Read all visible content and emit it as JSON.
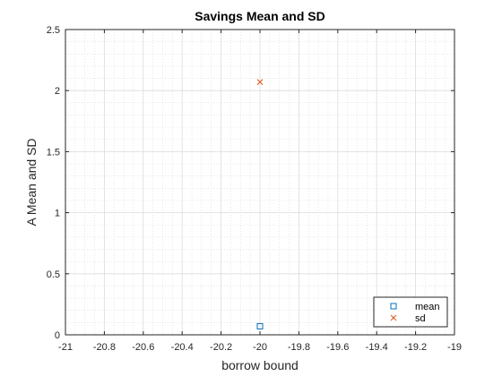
{
  "chart_data": {
    "type": "scatter",
    "title": "Savings Mean and SD",
    "xlabel": "borrow bound",
    "ylabel": "A Mean and SD",
    "xlim": [
      -21,
      -19
    ],
    "ylim": [
      0,
      2.5
    ],
    "xticks": [
      -21,
      -20.8,
      -20.6,
      -20.4,
      -20.2,
      -20,
      -19.8,
      -19.6,
      -19.4,
      -19.2,
      -19
    ],
    "xtick_labels": [
      "-21",
      "-20.8",
      "-20.6",
      "-20.4",
      "-20.2",
      "-20",
      "-19.8",
      "-19.6",
      "-19.4",
      "-19.2",
      "-19"
    ],
    "yticks": [
      0,
      0.5,
      1,
      1.5,
      2,
      2.5
    ],
    "ytick_labels": [
      "0",
      "0.5",
      "1",
      "1.5",
      "2",
      "2.5"
    ],
    "grid": true,
    "minor_grid": true,
    "legend_location": "bottom-right",
    "series": [
      {
        "name": "mean",
        "marker": "square",
        "color": "#0072BD",
        "points": [
          {
            "x": -20,
            "y": 0.07
          }
        ]
      },
      {
        "name": "sd",
        "marker": "x",
        "color": "#D95319",
        "points": [
          {
            "x": -20,
            "y": 2.07
          }
        ]
      }
    ]
  }
}
